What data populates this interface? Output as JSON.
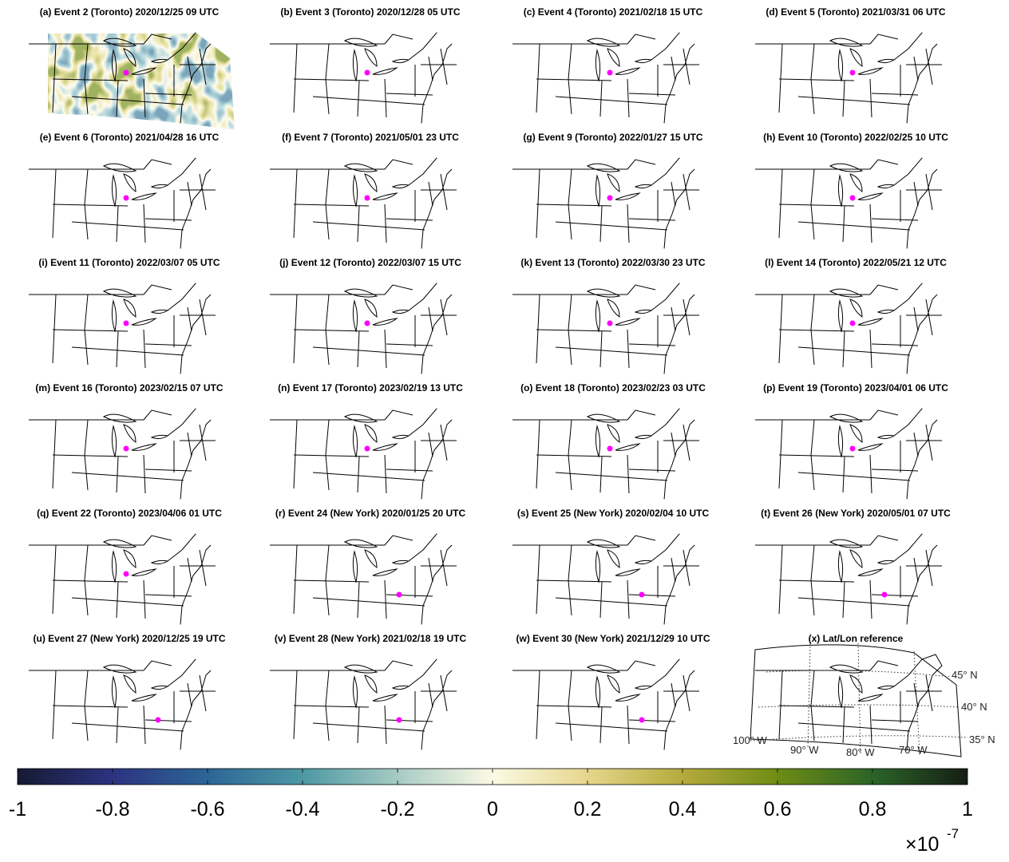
{
  "panels": [
    {
      "title": "(a) Event 2 (Toronto) 2020/12/25 09 UTC"
    },
    {
      "title": "(b) Event 3 (Toronto) 2020/12/28 05 UTC"
    },
    {
      "title": "(c) Event 4 (Toronto) 2021/02/18 15 UTC"
    },
    {
      "title": "(d) Event 5 (Toronto) 2021/03/31 06 UTC"
    },
    {
      "title": "(e) Event 6 (Toronto) 2021/04/28 16 UTC"
    },
    {
      "title": "(f) Event 7 (Toronto) 2021/05/01 23 UTC"
    },
    {
      "title": "(g) Event 9 (Toronto) 2022/01/27 15 UTC"
    },
    {
      "title": "(h) Event 10 (Toronto) 2022/02/25 10 UTC"
    },
    {
      "title": "(i) Event 11 (Toronto) 2022/03/07 05 UTC"
    },
    {
      "title": "(j) Event 12 (Toronto) 2022/03/07 15 UTC"
    },
    {
      "title": "(k) Event 13 (Toronto) 2022/03/30 23 UTC"
    },
    {
      "title": "(l) Event 14 (Toronto) 2022/05/21 12 UTC"
    },
    {
      "title": "(m) Event 16 (Toronto) 2023/02/15 07 UTC"
    },
    {
      "title": "(n) Event 17 (Toronto) 2023/02/19 13 UTC"
    },
    {
      "title": "(o) Event 18 (Toronto) 2023/02/23 03 UTC"
    },
    {
      "title": "(p) Event 19 (Toronto) 2023/04/01 06 UTC"
    },
    {
      "title": "(q) Event 22 (Toronto) 2023/04/06 01 UTC"
    },
    {
      "title": "(r) Event 24 (New York) 2020/01/25 20 UTC"
    },
    {
      "title": "(s) Event 25 (New York) 2020/02/04 10 UTC"
    },
    {
      "title": "(t) Event 26 (New York) 2020/05/01 07 UTC"
    },
    {
      "title": "(u) Event 27 (New York) 2020/12/25 19 UTC"
    },
    {
      "title": "(v) Event 28 (New York) 2021/02/18 19 UTC"
    },
    {
      "title": "(w) Event 30 (New York) 2021/12/29 10 UTC"
    }
  ],
  "reference": {
    "title": "(x) Lat/Lon reference",
    "lat_labels": [
      "45° N",
      "40° N",
      "35° N"
    ],
    "lon_labels": [
      "100° W",
      "90° W",
      "80° W",
      "70° W"
    ]
  },
  "colorbar": {
    "lim": [
      -1,
      1
    ],
    "ticks": [
      -1,
      -0.8,
      -0.6,
      -0.4,
      -0.2,
      0,
      0.2,
      0.4,
      0.6,
      0.8,
      1
    ],
    "multiplier": {
      "base": "×10",
      "exponent": "-7"
    }
  }
}
